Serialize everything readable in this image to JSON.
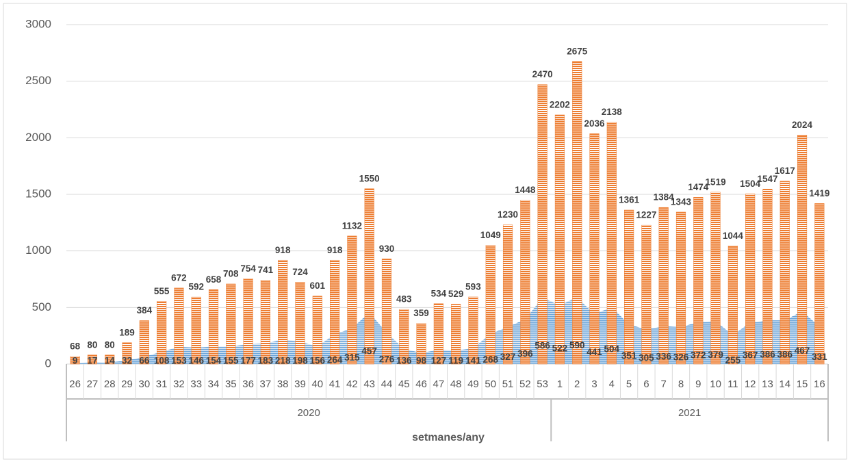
{
  "chart_data": {
    "type": "bar_area",
    "x_label": "setmanes/any",
    "groups": [
      {
        "label": "2020",
        "categories": [
          "26",
          "27",
          "28",
          "29",
          "30",
          "31",
          "32",
          "33",
          "34",
          "35",
          "36",
          "37",
          "38",
          "39",
          "40",
          "41",
          "42",
          "43",
          "44",
          "45",
          "46",
          "47",
          "48",
          "49",
          "50",
          "51",
          "52",
          "53"
        ]
      },
      {
        "label": "2021",
        "categories": [
          "1",
          "2",
          "3",
          "4",
          "5",
          "6",
          "7",
          "8",
          "9",
          "10",
          "11",
          "12",
          "13",
          "14",
          "15",
          "16"
        ]
      }
    ],
    "series": [
      {
        "type": "bar",
        "color": "#ed7d31",
        "values": [
          68,
          80,
          80,
          189,
          384,
          555,
          672,
          592,
          658,
          708,
          754,
          741,
          918,
          724,
          601,
          918,
          1132,
          1550,
          930,
          483,
          359,
          534,
          529,
          593,
          1049,
          1230,
          1448,
          2470,
          2202,
          2675,
          2036,
          2138,
          1361,
          1227,
          1384,
          1343,
          1474,
          1519,
          1044,
          1504,
          1547,
          1617,
          2024,
          1419
        ]
      },
      {
        "type": "area",
        "color": "#5b9bd5",
        "values": [
          9,
          17,
          14,
          32,
          66,
          108,
          153,
          146,
          154,
          155,
          177,
          183,
          218,
          198,
          156,
          264,
          315,
          457,
          276,
          136,
          98,
          127,
          119,
          141,
          268,
          327,
          396,
          586,
          522,
          590,
          441,
          504,
          351,
          305,
          336,
          326,
          372,
          379,
          255,
          367,
          386,
          386,
          467,
          331
        ]
      }
    ],
    "ylim": [
      0,
      3000
    ],
    "yticks": [
      0,
      500,
      1000,
      1500,
      2000,
      2500,
      3000
    ],
    "grid": true
  }
}
